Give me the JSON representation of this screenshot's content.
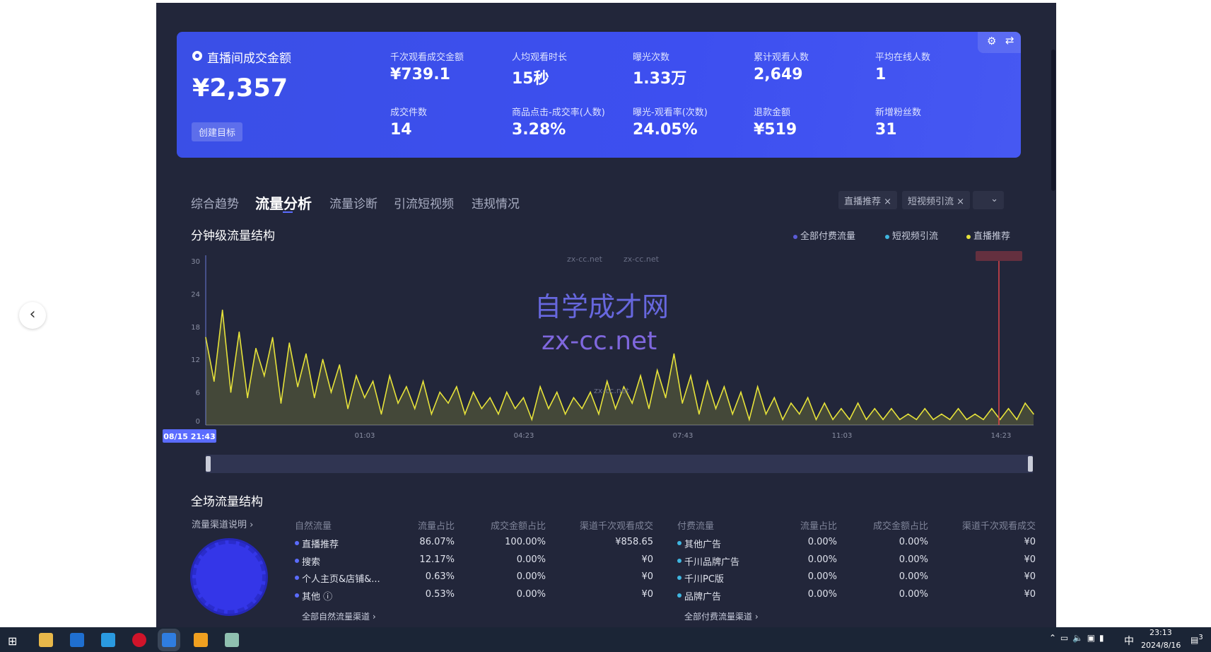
{
  "card": {
    "title": "直播间成交金额",
    "value": "¥2,357",
    "create_target": "创建目标",
    "metrics": [
      {
        "label": "千次观看成交金额",
        "value": "¥739.1"
      },
      {
        "label": "人均观看时长",
        "value": "15秒"
      },
      {
        "label": "曝光次数",
        "value": "1.33万"
      },
      {
        "label": "累计观看人数",
        "value": "2,649"
      },
      {
        "label": "平均在线人数",
        "value": "1"
      },
      {
        "label": "成交件数",
        "value": "14"
      },
      {
        "label": "商品点击-成交率(人数)",
        "value": "3.28%"
      },
      {
        "label": "曝光-观看率(次数)",
        "value": "24.05%"
      },
      {
        "label": "退款金额",
        "value": "¥519"
      },
      {
        "label": "新增粉丝数",
        "value": "31"
      }
    ]
  },
  "tabs": [
    "综合趋势",
    "流量分析",
    "流量诊断",
    "引流短视频",
    "违规情况"
  ],
  "active_tab": "流量分析",
  "filter_tags": [
    "直播推荐",
    "短视频引流"
  ],
  "chart_section_title": "分钟级流量结构",
  "legend": [
    {
      "name": "全部付费流量",
      "color": "#5b5bd6"
    },
    {
      "name": "短视频引流",
      "color": "#3fb6e0"
    },
    {
      "name": "直播推荐",
      "color": "#e6e23a"
    }
  ],
  "watermark": {
    "main": "自学成才网",
    "sub": "zx-cc.net",
    "small": "zx-cc.net"
  },
  "chart_data": {
    "type": "area",
    "x_start_label": "08/15 21:43",
    "x_ticks": [
      "01:03",
      "04:23",
      "07:43",
      "11:03",
      "14:23"
    ],
    "y_ticks": [
      0,
      6,
      12,
      18,
      24,
      30
    ],
    "ylim": [
      0,
      30
    ],
    "grid": false,
    "legend_position": "top-right",
    "series": [
      {
        "name": "直播推荐",
        "color": "#e6e23a",
        "values": [
          16,
          8,
          21,
          6,
          17,
          5,
          14,
          9,
          16,
          4,
          15,
          7,
          13,
          5,
          12,
          6,
          11,
          3,
          9,
          5,
          8,
          2,
          9,
          4,
          7,
          3,
          8,
          2,
          6,
          4,
          7,
          2,
          6,
          3,
          5,
          2,
          6,
          3,
          5,
          1,
          7,
          3,
          6,
          2,
          5,
          3,
          6,
          2,
          8,
          3,
          7,
          4,
          9,
          3,
          10,
          5,
          13,
          4,
          9,
          2,
          8,
          3,
          7,
          2,
          6,
          1,
          7,
          2,
          5,
          1,
          4,
          2,
          5,
          1,
          4,
          1,
          3,
          1,
          4,
          1,
          3,
          1,
          3,
          1,
          2,
          1,
          3,
          1,
          2,
          1,
          3,
          1,
          2,
          1,
          3,
          1,
          3,
          1,
          4,
          2
        ]
      }
    ]
  },
  "overall": {
    "title": "全场流量结构",
    "channel_help": "流量渠道说明 ›",
    "natural": {
      "headers": [
        "自然流量",
        "流量占比",
        "成交金额占比",
        "渠道千次观看成交"
      ],
      "rows": [
        [
          "直播推荐",
          "86.07%",
          "100.00%",
          "¥858.65"
        ],
        [
          "搜索",
          "12.17%",
          "0.00%",
          "¥0"
        ],
        [
          "个人主页&店铺&...",
          "0.63%",
          "0.00%",
          "¥0"
        ],
        [
          "其他 ⓘ",
          "0.53%",
          "0.00%",
          "¥0"
        ]
      ],
      "link": "全部自然流量渠道 ›"
    },
    "paid": {
      "headers": [
        "付费流量",
        "流量占比",
        "成交金额占比",
        "渠道千次观看成交"
      ],
      "rows": [
        [
          "其他广告",
          "0.00%",
          "0.00%",
          "¥0"
        ],
        [
          "千川品牌广告",
          "0.00%",
          "0.00%",
          "¥0"
        ],
        [
          "千川PC版",
          "0.00%",
          "0.00%",
          "¥0"
        ],
        [
          "品牌广告",
          "0.00%",
          "0.00%",
          "¥0"
        ]
      ],
      "link": "全部付费流量渠道 ›"
    }
  },
  "tray": {
    "time": "23:13",
    "date": "2024/8/16",
    "ime": "中",
    "notifications": "3"
  }
}
